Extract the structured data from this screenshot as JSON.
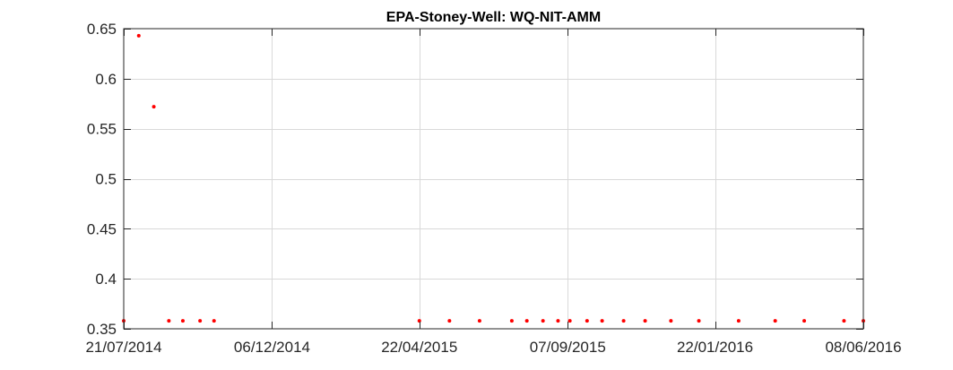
{
  "chart_data": {
    "type": "scatter",
    "title": "EPA-Stoney-Well: WQ-NIT-AMM",
    "xlabel": "",
    "ylabel": "",
    "x_axis_type": "date",
    "xlim": [
      "2014-07-21",
      "2016-06-08"
    ],
    "ylim": [
      0.35,
      0.65
    ],
    "x_ticks": [
      "2014-07-21",
      "2014-12-06",
      "2015-04-22",
      "2015-09-07",
      "2016-01-22",
      "2016-06-08"
    ],
    "x_tick_labels": [
      "21/07/2014",
      "06/12/2014",
      "22/04/2015",
      "07/09/2015",
      "22/01/2016",
      "08/06/2016"
    ],
    "y_ticks": [
      0.35,
      0.4,
      0.45,
      0.5,
      0.55,
      0.6,
      0.65
    ],
    "y_tick_labels": [
      "0.35",
      "0.4",
      "0.45",
      "0.5",
      "0.55",
      "0.6",
      "0.65"
    ],
    "grid": true,
    "marker_color": "#ff0000",
    "series": [
      {
        "points": [
          {
            "x": "2014-07-21",
            "y": 0.358
          },
          {
            "x": "2014-08-04",
            "y": 0.643
          },
          {
            "x": "2014-08-18",
            "y": 0.572
          },
          {
            "x": "2014-09-01",
            "y": 0.358
          },
          {
            "x": "2014-09-14",
            "y": 0.358
          },
          {
            "x": "2014-09-30",
            "y": 0.358
          },
          {
            "x": "2014-10-13",
            "y": 0.358
          },
          {
            "x": "2015-04-22",
            "y": 0.358
          },
          {
            "x": "2015-05-20",
            "y": 0.358
          },
          {
            "x": "2015-06-17",
            "y": 0.358
          },
          {
            "x": "2015-07-17",
            "y": 0.358
          },
          {
            "x": "2015-07-31",
            "y": 0.358
          },
          {
            "x": "2015-08-15",
            "y": 0.358
          },
          {
            "x": "2015-08-29",
            "y": 0.358
          },
          {
            "x": "2015-09-09",
            "y": 0.358
          },
          {
            "x": "2015-09-25",
            "y": 0.358
          },
          {
            "x": "2015-10-09",
            "y": 0.358
          },
          {
            "x": "2015-10-29",
            "y": 0.358
          },
          {
            "x": "2015-11-18",
            "y": 0.358
          },
          {
            "x": "2015-12-12",
            "y": 0.358
          },
          {
            "x": "2016-01-07",
            "y": 0.358
          },
          {
            "x": "2016-02-13",
            "y": 0.358
          },
          {
            "x": "2016-03-18",
            "y": 0.358
          },
          {
            "x": "2016-04-14",
            "y": 0.358
          },
          {
            "x": "2016-05-21",
            "y": 0.358
          },
          {
            "x": "2016-06-08",
            "y": 0.358
          }
        ]
      }
    ]
  }
}
